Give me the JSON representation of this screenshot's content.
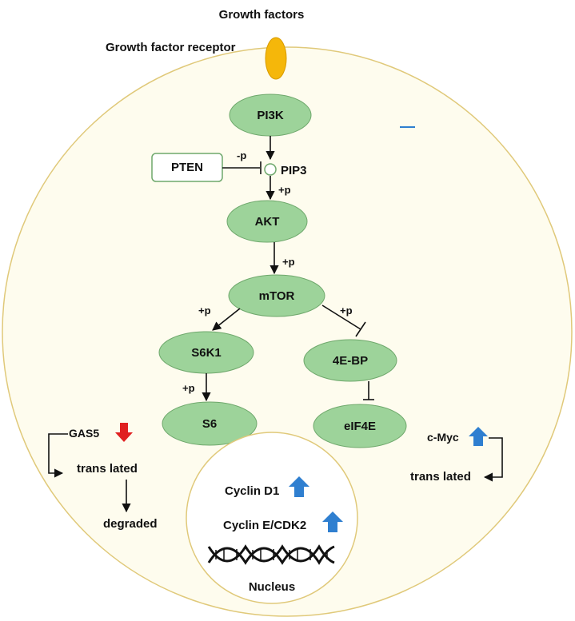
{
  "title": "Growth factors",
  "receptor_label": "Growth factor receptor",
  "nodes": {
    "pi3k": "PI3K",
    "pten": "PTEN",
    "pip3": "PIP3",
    "akt": "AKT",
    "mtor": "mTOR",
    "s6k1": "S6K1",
    "s6": "S6",
    "ebp": "4E-BP",
    "eif4e": "eIF4E"
  },
  "edge_labels": {
    "pten_pip3": "-p",
    "pip3_akt": "+p",
    "akt_mtor": "+p",
    "mtor_s6k1": "+p",
    "mtor_4ebp": "+p",
    "s6k1_s6": "+p"
  },
  "left_branch": {
    "gas5": "GAS5",
    "translated": "trans lated",
    "degraded": "degraded",
    "gas5_direction": "down"
  },
  "right_branch": {
    "cmyc": "c-Myc",
    "translated": "trans lated",
    "cmyc_direction": "up"
  },
  "nucleus": {
    "label": "Nucleus",
    "cyclin_d1": "Cyclin D1",
    "cyclin_e": "Cyclin E/CDK2",
    "cyclin_d1_direction": "up",
    "cyclin_e_direction": "up"
  },
  "colors": {
    "node_fill": "#9dd39a",
    "node_stroke": "#6fa86c",
    "cell_fill": "#fefcee",
    "cell_stroke": "#e0c97a",
    "receptor": "#f5b70a",
    "up_arrow": "#2f7fd0",
    "down_arrow": "#e02020"
  }
}
